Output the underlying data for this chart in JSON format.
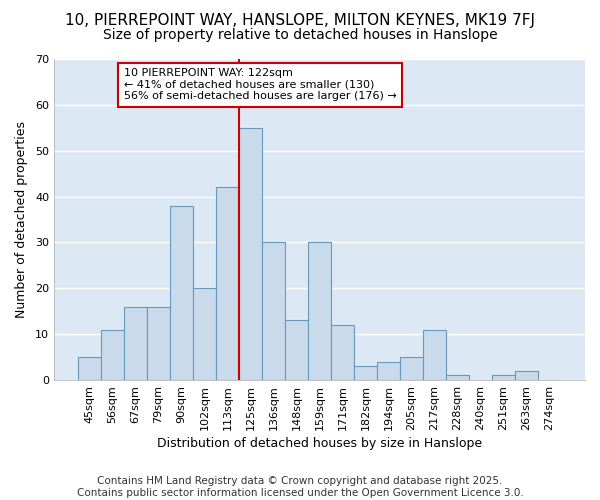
{
  "title1": "10, PIERREPOINT WAY, HANSLOPE, MILTON KEYNES, MK19 7FJ",
  "title2": "Size of property relative to detached houses in Hanslope",
  "xlabel": "Distribution of detached houses by size in Hanslope",
  "ylabel": "Number of detached properties",
  "bar_labels": [
    "45sqm",
    "56sqm",
    "67sqm",
    "79sqm",
    "90sqm",
    "102sqm",
    "113sqm",
    "125sqm",
    "136sqm",
    "148sqm",
    "159sqm",
    "171sqm",
    "182sqm",
    "194sqm",
    "205sqm",
    "217sqm",
    "228sqm",
    "240sqm",
    "251sqm",
    "263sqm",
    "274sqm"
  ],
  "bar_values": [
    5,
    11,
    16,
    16,
    38,
    20,
    42,
    55,
    30,
    13,
    30,
    12,
    3,
    4,
    5,
    11,
    1,
    0,
    1,
    2,
    0
  ],
  "bar_color": "#c9daea",
  "bar_edge_color": "#6699bb",
  "vline_color": "#cc0000",
  "annotation_text": "10 PIERREPOINT WAY: 122sqm\n← 41% of detached houses are smaller (130)\n56% of semi-detached houses are larger (176) →",
  "annotation_box_color": "#ffffff",
  "annotation_box_edge": "#cc0000",
  "ylim": [
    0,
    70
  ],
  "yticks": [
    0,
    10,
    20,
    30,
    40,
    50,
    60,
    70
  ],
  "plot_bg_color": "#dde8f5",
  "fig_bg_color": "#ffffff",
  "grid_color": "#ffffff",
  "title_fontsize": 11,
  "subtitle_fontsize": 10,
  "axis_label_fontsize": 9,
  "tick_fontsize": 8,
  "annotation_fontsize": 8,
  "footer_fontsize": 7.5,
  "footer_text": "Contains HM Land Registry data © Crown copyright and database right 2025.\nContains public sector information licensed under the Open Government Licence 3.0."
}
